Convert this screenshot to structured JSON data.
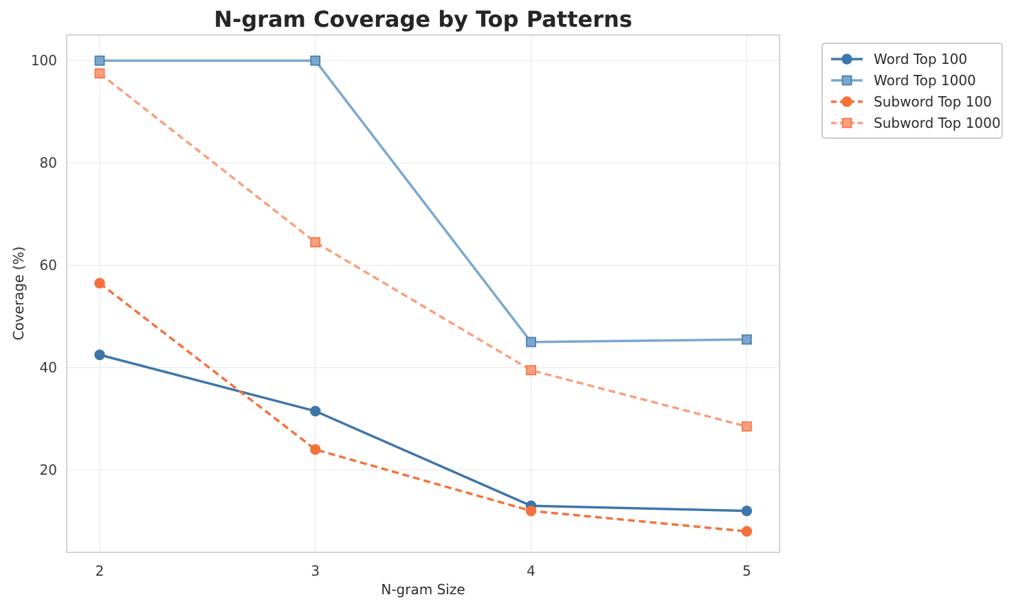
{
  "chart_data": {
    "type": "line",
    "title": "N-gram Coverage by Top Patterns",
    "xlabel": "N-gram Size",
    "ylabel": "Coverage (%)",
    "x": [
      2,
      3,
      4,
      5
    ],
    "x_ticks": [
      "2",
      "3",
      "4",
      "5"
    ],
    "y_ticks": [
      "20",
      "40",
      "60",
      "80",
      "100"
    ],
    "xlim": [
      1.847,
      5.152
    ],
    "ylim": [
      3.9,
      105.0
    ],
    "grid": true,
    "legend_position": "outside-top-right",
    "series": [
      {
        "name": "Word Top 100",
        "values": [
          42.5,
          31.5,
          13,
          12
        ],
        "color": "#3e76a9",
        "marker": "circle",
        "marker_edge": "#3e76a9",
        "line_style": "solid"
      },
      {
        "name": "Word Top 1000",
        "values": [
          100,
          100,
          45,
          45.5
        ],
        "color": "#7ba7ce",
        "marker": "square",
        "marker_edge": "#4a7fb0",
        "line_style": "solid"
      },
      {
        "name": "Subword Top 100",
        "values": [
          56.5,
          24,
          12,
          8
        ],
        "color": "#f5713b",
        "marker": "circle",
        "marker_edge": "#f5713b",
        "line_style": "dashed"
      },
      {
        "name": "Subword Top 1000",
        "values": [
          97.5,
          64.5,
          39.5,
          28.5
        ],
        "color": "#fa9f7d",
        "marker": "square",
        "marker_edge": "#f4774a",
        "line_style": "dashed"
      }
    ]
  }
}
